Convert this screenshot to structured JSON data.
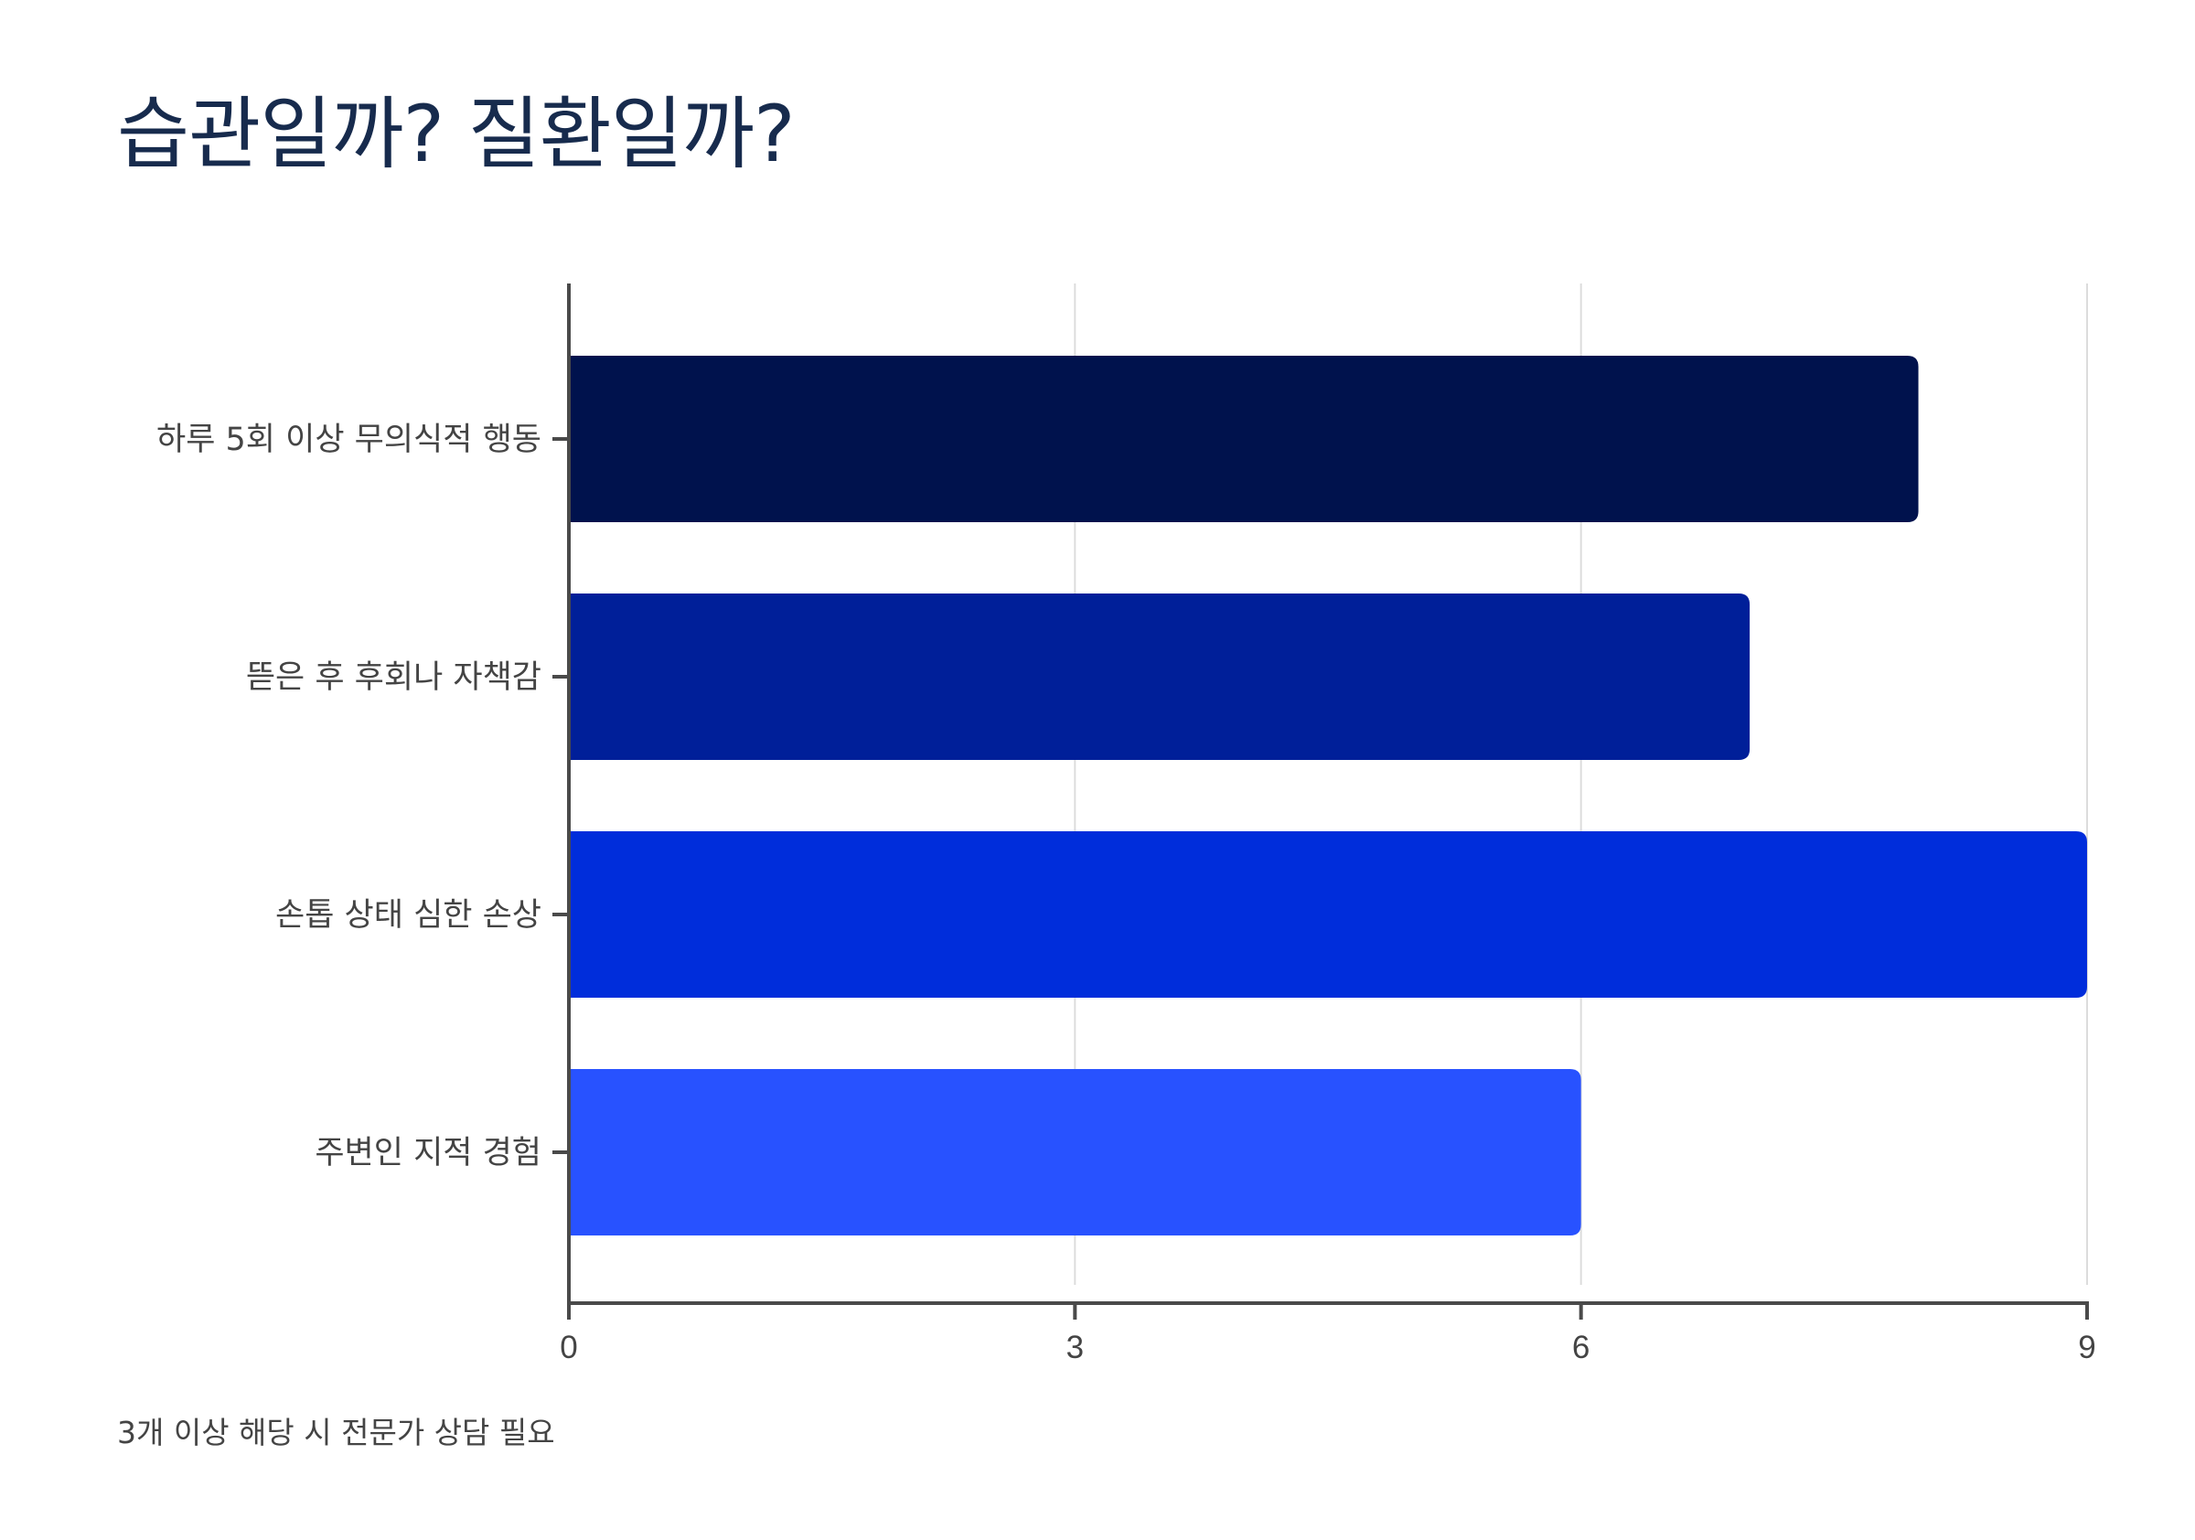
{
  "chart_data": {
    "type": "bar",
    "orientation": "horizontal",
    "title": "습관일까? 질환일까?",
    "categories": [
      "하루 5회 이상 무의식적 행동",
      "뜯은 후 후회나 자책감",
      "손톱 상태 심한 손상",
      "주변인 지적 경험"
    ],
    "values": [
      8,
      7,
      9,
      6
    ],
    "colors": [
      "#00124d",
      "#001f99",
      "#002ddb",
      "#2852ff"
    ],
    "xlim": [
      0,
      9
    ],
    "xticks": [
      0,
      3,
      6,
      9
    ],
    "grid": true,
    "legend": "none"
  },
  "footnote": "3개 이상 해당 시 전문가 상담 필요"
}
